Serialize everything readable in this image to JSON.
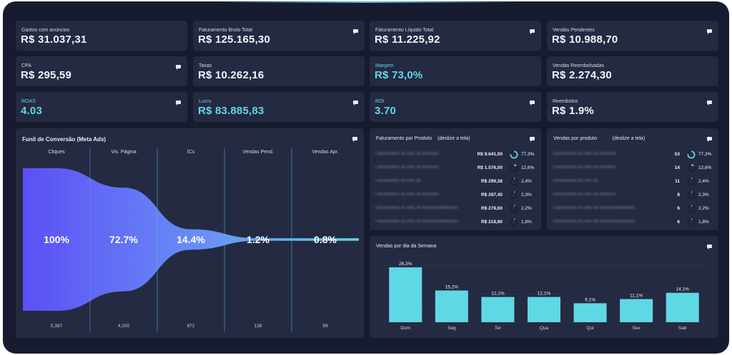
{
  "colors": {
    "accent": "#5fd8e6",
    "background": "#161b2f",
    "card": "#242a41",
    "funnel_start": "#5b4ff5",
    "funnel_end": "#5fd8e6"
  },
  "kpis": [
    {
      "label": "Gastos com anúncios",
      "value": "R$ 31.037,31",
      "comment": false,
      "accent": false
    },
    {
      "label": "Faturamento Bruto Total",
      "value": "R$ 125.165,30",
      "comment": true,
      "accent": false
    },
    {
      "label": "Faturamento Líquido Total",
      "value": "R$ 11.225,92",
      "comment": true,
      "accent": false
    },
    {
      "label": "Vendas Pendentes",
      "value": "R$ 10.988,70",
      "comment": true,
      "accent": false
    },
    {
      "label": "CPA",
      "value": "R$ 295,59",
      "comment": true,
      "accent": false
    },
    {
      "label": "Taxas",
      "value": "R$ 10.262,16",
      "comment": false,
      "accent": false
    },
    {
      "label": "Margem",
      "value": "R$ 73,0%",
      "comment": false,
      "accent": true
    },
    {
      "label": "Vendas Reembolsadas",
      "value": "R$ 2.274,30",
      "comment": false,
      "accent": false
    },
    {
      "label": "ROAS",
      "value": "4.03",
      "comment": true,
      "accent": true
    },
    {
      "label": "Lucro",
      "value": "R$ 83.885,83",
      "comment": true,
      "accent": true
    },
    {
      "label": "ROI",
      "value": "3.70",
      "comment": true,
      "accent": true
    },
    {
      "label": "Reembolso",
      "value": "R$ 1.9%",
      "comment": true,
      "accent": false
    }
  ],
  "funnel": {
    "title": "Funil de Conversão (Meta Ads)",
    "stages": [
      {
        "name": "Cliques",
        "percent": "100%",
        "count": "5,387",
        "fraction": 1.0
      },
      {
        "name": "Vis. Página",
        "percent": "72.7%",
        "count": "4,200",
        "fraction": 0.727
      },
      {
        "name": "ICs",
        "percent": "14.4%",
        "count": "872",
        "fraction": 0.144
      },
      {
        "name": "Vendas Pend.",
        "percent": "1.2%",
        "count": "138",
        "fraction": 0.012
      },
      {
        "name": "Vendas Apr.",
        "percent": "0.8%",
        "count": "99",
        "fraction": 0.008
      }
    ]
  },
  "revenue_by_product": {
    "title": "Faturamento por Produto",
    "hint": "(deslize a tela)",
    "rows": [
      {
        "name": "Faturamento do mês de fevereiro",
        "value": "R$ 9.641,00",
        "percent": "77,3%",
        "fraction": 0.773
      },
      {
        "name": "Faturamento do mês de fevereiro",
        "value": "R$ 1.576,00",
        "percent": "12,6%",
        "fraction": 0.126
      },
      {
        "name": "Faturamento do mês de",
        "value": "R$ 299,38",
        "percent": "2,4%",
        "fraction": 0.024
      },
      {
        "name": "Faturamento do mês de fevereiro",
        "value": "R$ 287,40",
        "percent": "2,3%",
        "fraction": 0.023
      },
      {
        "name": "Faturamento do mês de fevereirodetalhado",
        "value": "R$ 278,60",
        "percent": "2,2%",
        "fraction": 0.022
      },
      {
        "name": "Faturamento do mês de fevereirodetalhado",
        "value": "R$ 218,90",
        "percent": "1,8%",
        "fraction": 0.018
      }
    ]
  },
  "sales_by_product": {
    "title": "Vendas por produto",
    "hint": "(deslize a tela)",
    "rows": [
      {
        "name": "Faturamento do mês de fevereiro",
        "value": "53",
        "percent": "77,3%",
        "fraction": 0.773
      },
      {
        "name": "Faturamento do mês de fevereiro",
        "value": "14",
        "percent": "12,6%",
        "fraction": 0.126
      },
      {
        "name": "Faturamento do mês de",
        "value": "11",
        "percent": "2,4%",
        "fraction": 0.024
      },
      {
        "name": "Faturamento do mês de fevereiro",
        "value": "8",
        "percent": "2,3%",
        "fraction": 0.023
      },
      {
        "name": "Faturamento do mês de fevereirodetalhado",
        "value": "6",
        "percent": "2,2%",
        "fraction": 0.022
      },
      {
        "name": "Faturamento do mês de fevereirodetalhado",
        "value": "6",
        "percent": "1,8%",
        "fraction": 0.018
      }
    ]
  },
  "chart_data": {
    "type": "bar",
    "title": "Vendas por dia da Semana",
    "categories": [
      "Dom",
      "Seg",
      "Ter",
      "Qua",
      "Qui",
      "Sex",
      "Sab"
    ],
    "values": [
      26.3,
      15.2,
      12.1,
      12.1,
      9.1,
      11.1,
      14.1
    ],
    "value_labels": [
      "26,3%",
      "15,2%",
      "12,1%",
      "12,1%",
      "9,1%",
      "11,1%",
      "14,1%"
    ],
    "color": "#5fd8e6",
    "ylim": [
      0,
      27
    ],
    "grid": true,
    "xlabel": "",
    "ylabel": ""
  }
}
